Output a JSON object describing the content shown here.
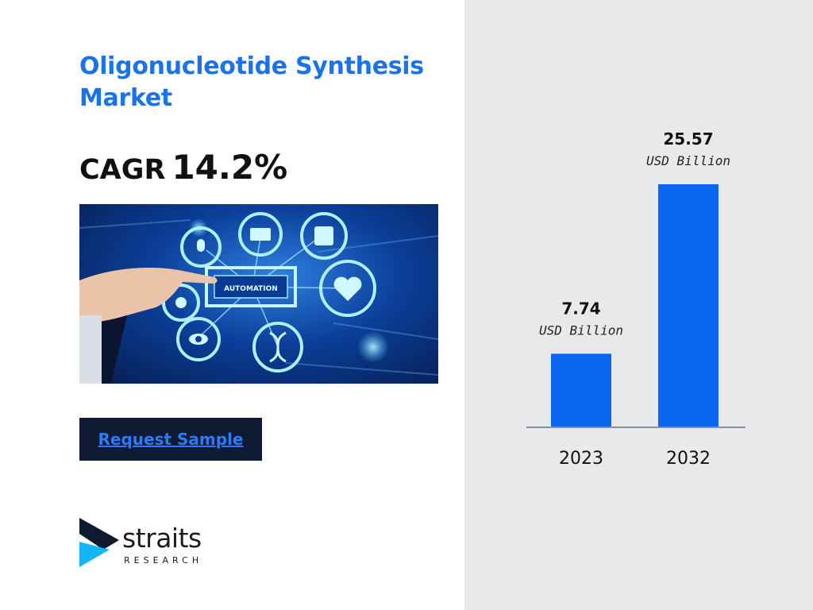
{
  "title": "Oligonucleotide Synthesis Market",
  "cagr": {
    "label": "CAGR",
    "value": "14.2%"
  },
  "hero_image": {
    "label": "AUTOMATION",
    "icons": [
      "microphone-icon",
      "folder-icon",
      "chip-icon",
      "heart-icon",
      "eye-icon",
      "dna-icon",
      "wifi-icon"
    ]
  },
  "cta": {
    "label": "Request Sample"
  },
  "logo": {
    "word": "straits",
    "sub": "RESEARCH"
  },
  "colors": {
    "title": "#1a73e8",
    "bar": "#0a66f0",
    "panel": "#e8e9eb",
    "button": "#0e1b33"
  },
  "chart_data": {
    "type": "bar",
    "categories": [
      "2023",
      "2032"
    ],
    "values": [
      7.74,
      25.57
    ],
    "value_labels": [
      "7.74",
      "25.57"
    ],
    "unit": "USD Billion",
    "title": "",
    "xlabel": "",
    "ylabel": "",
    "ylim": [
      0,
      25.57
    ],
    "grid": false
  }
}
